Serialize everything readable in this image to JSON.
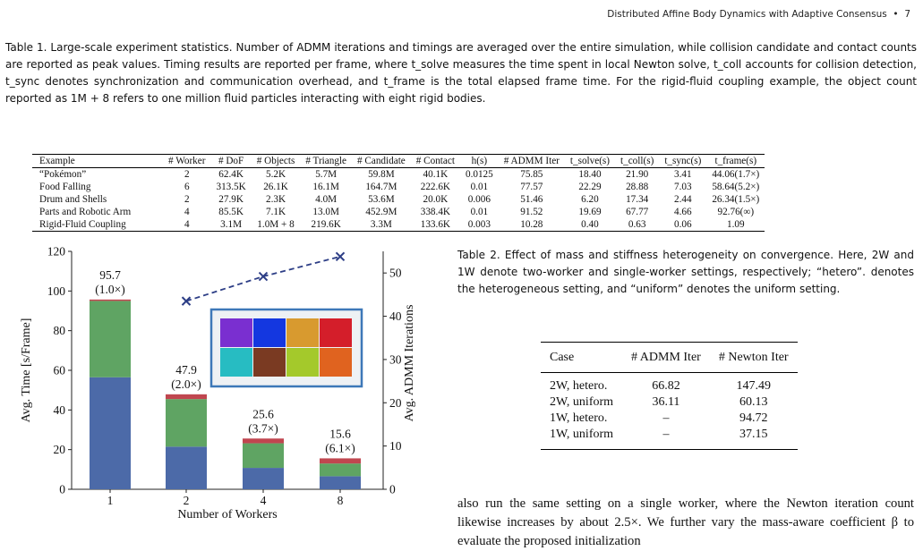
{
  "header": {
    "running_title": "Distributed Affine Body Dynamics with Adaptive Consensus",
    "bullet": "•",
    "page": "7"
  },
  "table1": {
    "label": "Table 1.",
    "caption": "Large-scale experiment statistics. Number of ADMM iterations and timings are averaged over the entire simulation, while collision candidate and contact counts are reported as peak values. Timing results are reported per frame, where t_solve measures the time spent in local Newton solve, t_coll accounts for collision detection, t_sync denotes synchronization and communication overhead, and t_frame is the total elapsed frame time. For the rigid-fluid coupling example, the object count reported as 1M + 8 refers to one million fluid particles interacting with eight rigid bodies.",
    "columns": [
      "Example",
      "# Worker",
      "# DoF",
      "# Objects",
      "# Triangle",
      "# Candidate",
      "# Contact",
      "h(s)",
      "# ADMM Iter",
      "t_solve(s)",
      "t_coll(s)",
      "t_sync(s)",
      "t_frame(s)"
    ],
    "rows": [
      [
        "“Pokémon”",
        "2",
        "62.4K",
        "5.2K",
        "5.7M",
        "59.8M",
        "40.1K",
        "0.0125",
        "75.85",
        "18.40",
        "21.90",
        "3.41",
        "44.06(1.7×)"
      ],
      [
        "Food Falling",
        "6",
        "313.5K",
        "26.1K",
        "16.1M",
        "164.7M",
        "222.6K",
        "0.01",
        "77.57",
        "22.29",
        "28.88",
        "7.03",
        "58.64(5.2×)"
      ],
      [
        "Drum and Shells",
        "2",
        "27.9K",
        "2.3K",
        "4.0M",
        "53.6M",
        "20.0K",
        "0.006",
        "51.46",
        "6.20",
        "17.34",
        "2.44",
        "26.34(1.5×)"
      ],
      [
        "Parts and Robotic Arm",
        "4",
        "85.5K",
        "7.1K",
        "13.0M",
        "452.9M",
        "338.4K",
        "0.01",
        "91.52",
        "19.69",
        "67.77",
        "4.66",
        "92.76(∞)"
      ],
      [
        "Rigid-Fluid Coupling",
        "4",
        "3.1M",
        "1.0M + 8",
        "219.6K",
        "3.3M",
        "133.6K",
        "0.003",
        "10.28",
        "0.40",
        "0.63",
        "0.06",
        "1.09"
      ]
    ]
  },
  "table2": {
    "label": "Table 2.",
    "caption": "Effect of mass and stiffness heterogeneity on convergence. Here, 2W and 1W denote two-worker and single-worker settings, respectively; “hetero”. denotes the heterogeneous setting, and “uniform” denotes the uniform setting.",
    "columns": [
      "Case",
      "# ADMM Iter",
      "# Newton Iter"
    ],
    "rows": [
      [
        "2W, hetero.",
        "66.82",
        "147.49"
      ],
      [
        "2W, uniform",
        "36.11",
        "60.13"
      ],
      [
        "1W, hetero.",
        "–",
        "94.72"
      ],
      [
        "1W, uniform",
        "–",
        "37.15"
      ]
    ]
  },
  "body_text": "also run the same setting on a single worker, where the Newton iteration count likewise increases by about 2.5×. We further vary the mass-aware coefficient β to evaluate the proposed initialization",
  "chart_data": {
    "type": "bar",
    "stacked": true,
    "categories": [
      "1",
      "2",
      "4",
      "8"
    ],
    "xlabel": "Number of Workers",
    "ylabel": "Avg. Time [s/Frame]",
    "ylabel_right": "Avg. ADMM Iterations",
    "ylim": [
      0,
      120
    ],
    "yticks": [
      0,
      20,
      40,
      60,
      80,
      100,
      120
    ],
    "ylim_right": [
      0,
      55
    ],
    "yticks_right": [
      0,
      10,
      20,
      30,
      40,
      50
    ],
    "series": [
      {
        "values": [
          56.5,
          21.5,
          10.8,
          6.6
        ],
        "color": "#4c6aa8"
      },
      {
        "values": [
          38.5,
          24.0,
          12.4,
          6.4
        ],
        "color": "#5fa463"
      },
      {
        "values": [
          0.7,
          2.4,
          2.4,
          2.6
        ],
        "color": "#c0464f"
      }
    ],
    "totals": [
      95.7,
      47.9,
      25.6,
      15.6
    ],
    "annotations": [
      {
        "value": "95.7",
        "speedup": "(1.0×)"
      },
      {
        "value": "47.9",
        "speedup": "(2.0×)"
      },
      {
        "value": "25.6",
        "speedup": "(3.7×)"
      },
      {
        "value": "15.6",
        "speedup": "(6.1×)"
      }
    ],
    "line_series": {
      "x": [
        "2",
        "4",
        "8"
      ],
      "values": [
        43.5,
        49.2,
        53.8
      ],
      "color": "#2d3e86",
      "style": "dashed",
      "marker": "x"
    },
    "inset": {
      "colors": [
        "#7a2fd0",
        "#1437e0",
        "#d89a2f",
        "#d41e2a",
        "#27bcc2",
        "#7a3a22",
        "#a4c92b",
        "#e0631f"
      ]
    }
  }
}
